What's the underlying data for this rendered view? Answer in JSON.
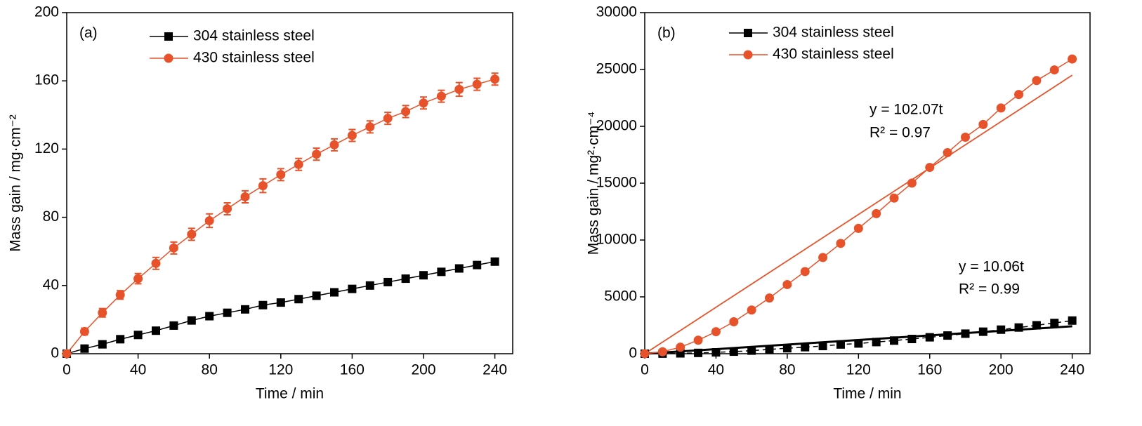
{
  "chart_data": [
    {
      "type": "line",
      "label": "(a)",
      "x_label": "Time / min",
      "y_label": "Mass gain / mg·cm⁻²",
      "x": [
        0,
        10,
        20,
        30,
        40,
        50,
        60,
        70,
        80,
        90,
        100,
        110,
        120,
        130,
        140,
        150,
        160,
        170,
        180,
        190,
        200,
        210,
        220,
        230,
        240
      ],
      "series": [
        {
          "name": "304 stainless steel",
          "color": "#000000",
          "marker": "square",
          "values": [
            0,
            3,
            5.5,
            8.5,
            11,
            13.5,
            16.5,
            19.5,
            22,
            24,
            26,
            28.5,
            30,
            32,
            34,
            36,
            38,
            40,
            42,
            44,
            46,
            48,
            50,
            52,
            54
          ],
          "errors": [
            0.5,
            1.5,
            1.5,
            1.5,
            1.5,
            1.5,
            1.5,
            1.5,
            1.5,
            1.5,
            1.5,
            1.5,
            1.5,
            1.5,
            1.5,
            1.5,
            1.5,
            1.5,
            1.5,
            1.5,
            1.5,
            1.5,
            1.5,
            1.5,
            1.5
          ]
        },
        {
          "name": "430 stainless steel",
          "color": "#e8522a",
          "marker": "circle",
          "values": [
            0,
            13,
            24,
            34.5,
            44,
            53,
            62,
            70,
            78,
            85,
            92,
            98.5,
            105,
            111,
            117,
            122.5,
            128,
            133,
            138,
            142,
            147,
            151,
            155,
            158,
            161
          ],
          "errors": [
            0.5,
            2,
            2.5,
            2.5,
            3,
            3.5,
            3.5,
            3.5,
            4,
            3.5,
            3.5,
            4,
            3.5,
            3.5,
            3.5,
            3.5,
            3.5,
            3.5,
            3.5,
            3.5,
            3.5,
            3.5,
            4,
            3.5,
            3.5
          ]
        }
      ],
      "xlim": [
        0,
        250
      ],
      "xticks": [
        0,
        40,
        80,
        120,
        160,
        200,
        240
      ],
      "ylim": [
        0,
        200
      ],
      "yticks": [
        0,
        40,
        80,
        120,
        160,
        200
      ]
    },
    {
      "type": "line",
      "label": "(b)",
      "x_label": "Time / min",
      "y_label": "Mass gain / mg²·cm⁻⁴",
      "x": [
        0,
        10,
        20,
        30,
        40,
        50,
        60,
        70,
        80,
        90,
        100,
        110,
        120,
        130,
        140,
        150,
        160,
        170,
        180,
        190,
        200,
        210,
        220,
        230,
        240
      ],
      "series": [
        {
          "name": "304 stainless steel",
          "color": "#000000",
          "marker": "square",
          "dashed": true,
          "values": [
            0,
            9,
            30,
            72,
            121,
            182,
            272,
            380,
            484,
            576,
            676,
            812,
            900,
            1024,
            1156,
            1296,
            1444,
            1600,
            1764,
            1936,
            2116,
            2304,
            2500,
            2704,
            2916
          ]
        },
        {
          "name": "430 stainless steel",
          "color": "#e8522a",
          "marker": "circle",
          "values": [
            0,
            169,
            576,
            1190,
            1936,
            2809,
            3844,
            4900,
            6084,
            7225,
            8464,
            9702,
            11025,
            12321,
            13689,
            15006,
            16384,
            17689,
            19044,
            20164,
            21609,
            22801,
            24025,
            24964,
            25921
          ]
        }
      ],
      "fits": [
        {
          "color": "#000000",
          "x": [
            0,
            240
          ],
          "values": [
            0,
            2414
          ]
        },
        {
          "color": "#e8522a",
          "x": [
            0,
            240
          ],
          "values": [
            0,
            24497
          ]
        }
      ],
      "annotations": [
        "y = 102.07t",
        "R² = 0.97",
        "y = 10.06t",
        "R² = 0.99"
      ],
      "xlim": [
        0,
        250
      ],
      "xticks": [
        0,
        40,
        80,
        120,
        160,
        200,
        240
      ],
      "ylim": [
        0,
        30000
      ],
      "yticks": [
        0,
        5000,
        10000,
        15000,
        20000,
        25000,
        30000
      ]
    }
  ]
}
